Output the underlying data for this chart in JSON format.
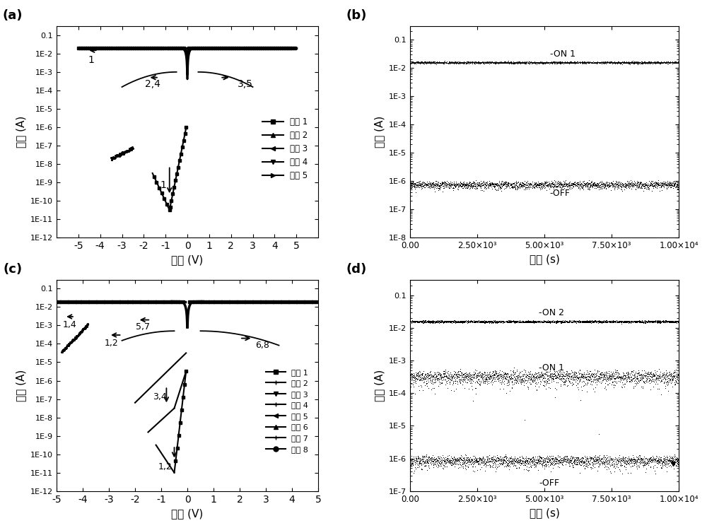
{
  "fig_width": 10.0,
  "fig_height": 7.47,
  "background_color": "#ffffff",
  "panel_labels": [
    "(a)",
    "(b)",
    "(c)",
    "(d)"
  ],
  "ylabel_chinese": "电流 (A)",
  "xlabel_voltage": "电压 (V)",
  "xlabel_time": "时间 (s)",
  "panel_a": {
    "xlim": [
      -6,
      6
    ],
    "ylim_log": [
      1e-12,
      0.3
    ],
    "xticks": [
      -5,
      -4,
      -3,
      -2,
      -1,
      0,
      1,
      2,
      3,
      4,
      5
    ],
    "yticks": [
      1e-12,
      1e-11,
      1e-10,
      1e-09,
      1e-08,
      1e-07,
      1e-06,
      1e-05,
      0.0001,
      0.001,
      0.01,
      0.1
    ],
    "legend_labels": [
      "扫描 1",
      "扫描 2",
      "扫描 3",
      "扫描 4",
      "扫描 5"
    ]
  },
  "panel_b": {
    "xlim": [
      0,
      10000
    ],
    "ylim_log": [
      1e-08,
      0.3
    ],
    "xticks": [
      0,
      2500,
      5000,
      7500,
      10000
    ],
    "xtick_labels": [
      "0.00",
      "2.50×10³",
      "5.00×10³",
      "7.50×10³",
      "1.00×10⁴"
    ],
    "yticks": [
      1e-08,
      1e-07,
      1e-06,
      1e-05,
      0.0001,
      0.001,
      0.01,
      0.1
    ],
    "on_level": 0.015,
    "off_level": 7e-07
  },
  "panel_c": {
    "xlim": [
      -5,
      5
    ],
    "ylim_log": [
      1e-12,
      0.3
    ],
    "xticks": [
      -5,
      -4,
      -3,
      -2,
      -1,
      0,
      1,
      2,
      3,
      4,
      5
    ],
    "yticks": [
      1e-12,
      1e-11,
      1e-10,
      1e-09,
      1e-08,
      1e-07,
      1e-06,
      1e-05,
      0.0001,
      0.001,
      0.01,
      0.1
    ],
    "legend_labels": [
      "扫描 1",
      "扫描 2",
      "扫描 3",
      "扫描 4",
      "扫描 5",
      "扫描 6",
      "扫描 7",
      "扫描 8"
    ]
  },
  "panel_d": {
    "xlim": [
      0,
      10000
    ],
    "ylim_log": [
      1e-07,
      0.3
    ],
    "xticks": [
      0,
      2500,
      5000,
      7500,
      10000
    ],
    "xtick_labels": [
      "0.00",
      "2.50×10³",
      "5.00×10³",
      "7.50×10³",
      "1.00×10⁴"
    ],
    "yticks": [
      1e-07,
      1e-06,
      1e-05,
      0.0001,
      0.001,
      0.01,
      0.1
    ],
    "on2_level": 0.015,
    "on1_level": 0.0003,
    "off_level": 8e-07
  }
}
